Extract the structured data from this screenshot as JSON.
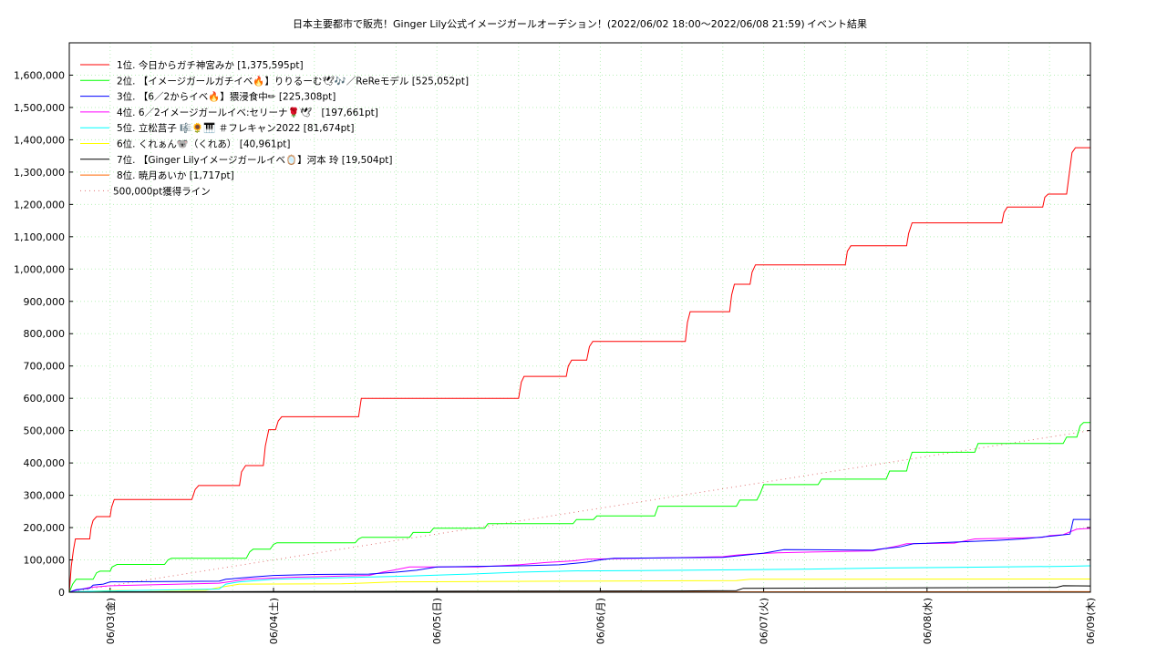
{
  "chart_data": {
    "type": "line",
    "title": "日本主要都市で販売！Ginger Lily公式イメージガールオーデション！(2022/06/02 18:00〜2022/06/08 21:59)",
    "subtitle": "イベント結果",
    "xlabel": "",
    "ylabel": "",
    "x_unit": "hours since 2022/06/02 18:00",
    "xlim": [
      0,
      150
    ],
    "ylim": [
      0,
      1700000
    ],
    "y_ticks": [
      0,
      100000,
      200000,
      300000,
      400000,
      500000,
      600000,
      700000,
      800000,
      900000,
      1000000,
      1100000,
      1200000,
      1300000,
      1400000,
      1500000,
      1600000
    ],
    "y_tick_labels": [
      "0",
      "100,000",
      "200,000",
      "300,000",
      "400,000",
      "500,000",
      "600,000",
      "700,000",
      "800,000",
      "900,000",
      "1,000,000",
      "1,100,000",
      "1,200,000",
      "1,300,000",
      "1,400,000",
      "1,500,000",
      "1,600,000"
    ],
    "x_ticks": [
      6,
      30,
      54,
      78,
      102,
      126,
      150
    ],
    "x_tick_labels": [
      "06/03(金)",
      "06/04(土)",
      "06/05(日)",
      "06/06(月)",
      "06/07(火)",
      "06/08(水)",
      "06/09(木)"
    ],
    "grid": true,
    "legend_position": "top-left",
    "series": [
      {
        "name": "1位. 今日からガチ神宮みか [1,375,595pt]",
        "color": "#ff0000",
        "style": "solid",
        "points": [
          [
            0,
            0
          ],
          [
            0.3,
            80000
          ],
          [
            0.6,
            130000
          ],
          [
            0.9,
            165000
          ],
          [
            3,
            165000
          ],
          [
            3.2,
            200000
          ],
          [
            3.5,
            222000
          ],
          [
            4,
            234000
          ],
          [
            6,
            234000
          ],
          [
            6.2,
            262000
          ],
          [
            6.6,
            287000
          ],
          [
            18,
            287000
          ],
          [
            18.5,
            318000
          ],
          [
            19,
            330000
          ],
          [
            25,
            330000
          ],
          [
            25.3,
            372000
          ],
          [
            25.9,
            392000
          ],
          [
            28.5,
            392000
          ],
          [
            28.8,
            452000
          ],
          [
            29.3,
            503000
          ],
          [
            30.3,
            503000
          ],
          [
            30.7,
            530000
          ],
          [
            31.2,
            543000
          ],
          [
            42.5,
            543000
          ],
          [
            42.9,
            600000
          ],
          [
            66,
            600000
          ],
          [
            66.4,
            650000
          ],
          [
            66.8,
            668000
          ],
          [
            73,
            668000
          ],
          [
            73.3,
            700000
          ],
          [
            73.8,
            718000
          ],
          [
            76,
            718000
          ],
          [
            76.4,
            760000
          ],
          [
            76.9,
            776000
          ],
          [
            90.5,
            776000
          ],
          [
            90.8,
            835000
          ],
          [
            91.2,
            868000
          ],
          [
            97,
            868000
          ],
          [
            97.3,
            920000
          ],
          [
            97.7,
            953000
          ],
          [
            100,
            953000
          ],
          [
            100.3,
            990000
          ],
          [
            100.8,
            1013000
          ],
          [
            114,
            1013000
          ],
          [
            114.3,
            1055000
          ],
          [
            114.8,
            1072000
          ],
          [
            123,
            1072000
          ],
          [
            123.3,
            1110000
          ],
          [
            123.8,
            1143000
          ],
          [
            137,
            1143000
          ],
          [
            137.3,
            1175000
          ],
          [
            137.8,
            1192000
          ],
          [
            143,
            1192000
          ],
          [
            143.3,
            1222000
          ],
          [
            143.8,
            1232000
          ],
          [
            146.5,
            1232000
          ],
          [
            146.8,
            1280000
          ],
          [
            147.3,
            1360000
          ],
          [
            147.8,
            1375595
          ],
          [
            150,
            1375595
          ]
        ]
      },
      {
        "name": "2位. 【イメージガールガチイベ🔥】りりるーむ🕊🎶／ReReモデル [525,052pt]",
        "color": "#00ff00",
        "style": "solid",
        "points": [
          [
            0,
            0
          ],
          [
            0.5,
            25000
          ],
          [
            1,
            40000
          ],
          [
            3.5,
            40000
          ],
          [
            4,
            60000
          ],
          [
            4.5,
            65000
          ],
          [
            6,
            65000
          ],
          [
            6.3,
            78000
          ],
          [
            7,
            86000
          ],
          [
            14,
            86000
          ],
          [
            14.5,
            100000
          ],
          [
            15,
            105000
          ],
          [
            26,
            105000
          ],
          [
            26.5,
            125000
          ],
          [
            27,
            133000
          ],
          [
            29.5,
            133000
          ],
          [
            30,
            148000
          ],
          [
            30.5,
            153000
          ],
          [
            42,
            153000
          ],
          [
            42.5,
            165000
          ],
          [
            43,
            170000
          ],
          [
            50,
            170000
          ],
          [
            50.5,
            185000
          ],
          [
            53,
            185000
          ],
          [
            53.5,
            198000
          ],
          [
            61,
            198000
          ],
          [
            61.5,
            212000
          ],
          [
            74,
            212000
          ],
          [
            74.5,
            225000
          ],
          [
            77,
            225000
          ],
          [
            77.5,
            236000
          ],
          [
            86,
            236000
          ],
          [
            86.5,
            266000
          ],
          [
            98,
            266000
          ],
          [
            98.5,
            285000
          ],
          [
            101,
            285000
          ],
          [
            101.5,
            306000
          ],
          [
            102,
            333000
          ],
          [
            110,
            333000
          ],
          [
            110.5,
            350000
          ],
          [
            120,
            350000
          ],
          [
            120.5,
            375000
          ],
          [
            123,
            375000
          ],
          [
            123.3,
            400000
          ],
          [
            123.8,
            433000
          ],
          [
            133,
            433000
          ],
          [
            133.5,
            460000
          ],
          [
            146,
            460000
          ],
          [
            146.5,
            480000
          ],
          [
            148,
            480000
          ],
          [
            148.5,
            515000
          ],
          [
            149,
            525052
          ],
          [
            150,
            525052
          ]
        ]
      },
      {
        "name": "3位. 【6／2からイベ🔥】猥浸食中✏ [225,308pt]",
        "color": "#0000ff",
        "style": "solid",
        "points": [
          [
            0,
            0
          ],
          [
            1,
            8000
          ],
          [
            3,
            12000
          ],
          [
            3.5,
            22000
          ],
          [
            5,
            25000
          ],
          [
            6,
            32000
          ],
          [
            22,
            34000
          ],
          [
            23,
            40000
          ],
          [
            27,
            47000
          ],
          [
            30,
            52000
          ],
          [
            36,
            55000
          ],
          [
            44,
            56000
          ],
          [
            48,
            62000
          ],
          [
            51,
            68000
          ],
          [
            54,
            78000
          ],
          [
            60,
            80000
          ],
          [
            67,
            82000
          ],
          [
            72,
            85000
          ],
          [
            76,
            93000
          ],
          [
            78,
            100000
          ],
          [
            80,
            105000
          ],
          [
            96,
            108000
          ],
          [
            102,
            121000
          ],
          [
            105,
            132000
          ],
          [
            118,
            130000
          ],
          [
            119,
            133000
          ],
          [
            122,
            140000
          ],
          [
            124,
            150000
          ],
          [
            130,
            155000
          ],
          [
            136,
            160000
          ],
          [
            140,
            165000
          ],
          [
            145,
            175000
          ],
          [
            147,
            180000
          ],
          [
            147.5,
            225308
          ],
          [
            150,
            225308
          ]
        ]
      },
      {
        "name": "4位. 6／2イメージガールイベ:セリーナ🌹🕊　[197,661pt]",
        "color": "#ff00ff",
        "style": "solid",
        "points": [
          [
            0,
            0
          ],
          [
            1,
            6000
          ],
          [
            3,
            15000
          ],
          [
            6,
            20000
          ],
          [
            22,
            28000
          ],
          [
            26,
            40000
          ],
          [
            32,
            46000
          ],
          [
            44,
            52000
          ],
          [
            46,
            62000
          ],
          [
            48,
            70000
          ],
          [
            50,
            78000
          ],
          [
            60,
            78000
          ],
          [
            66,
            85000
          ],
          [
            70,
            92000
          ],
          [
            74,
            97000
          ],
          [
            76,
            102000
          ],
          [
            84,
            105000
          ],
          [
            96,
            110000
          ],
          [
            98,
            115000
          ],
          [
            100,
            118000
          ],
          [
            104,
            122000
          ],
          [
            110,
            125000
          ],
          [
            118,
            128000
          ],
          [
            121,
            140000
          ],
          [
            123,
            150000
          ],
          [
            130,
            152000
          ],
          [
            133,
            165000
          ],
          [
            140,
            168000
          ],
          [
            143,
            170000
          ],
          [
            144,
            175000
          ],
          [
            146,
            178000
          ],
          [
            148,
            195000
          ],
          [
            150,
            197661
          ]
        ]
      },
      {
        "name": "5位. 立松莒子 🎼🌻🎹 ＃フレキャン2022 [81,674pt]",
        "color": "#00ffff",
        "style": "solid",
        "points": [
          [
            0,
            0
          ],
          [
            1,
            2000
          ],
          [
            6,
            4000
          ],
          [
            22,
            10000
          ],
          [
            23,
            25000
          ],
          [
            25,
            32000
          ],
          [
            30,
            40000
          ],
          [
            40,
            45000
          ],
          [
            50,
            50000
          ],
          [
            60,
            57000
          ],
          [
            66,
            62000
          ],
          [
            74,
            66000
          ],
          [
            84,
            67000
          ],
          [
            100,
            70000
          ],
          [
            110,
            72000
          ],
          [
            120,
            75000
          ],
          [
            130,
            77000
          ],
          [
            146,
            80000
          ],
          [
            150,
            81674
          ]
        ]
      },
      {
        "name": "6位. くれぁん🐨（くれあ） [40,961pt]",
        "color": "#ffff00",
        "style": "solid",
        "points": [
          [
            0,
            0
          ],
          [
            6,
            5000
          ],
          [
            20,
            6000
          ],
          [
            22,
            15000
          ],
          [
            25,
            25000
          ],
          [
            40,
            26000
          ],
          [
            48,
            32000
          ],
          [
            60,
            33000
          ],
          [
            72,
            34000
          ],
          [
            84,
            35000
          ],
          [
            98,
            36000
          ],
          [
            100,
            40000
          ],
          [
            150,
            40961
          ]
        ]
      },
      {
        "name": "7位. 【Ginger Lilyイメージガールイベ🪞】河本 玲 [19,504pt]",
        "color": "#000000",
        "style": "solid",
        "points": [
          [
            0,
            0
          ],
          [
            5,
            1000
          ],
          [
            30,
            2000
          ],
          [
            60,
            3000
          ],
          [
            90,
            4000
          ],
          [
            98,
            5000
          ],
          [
            99,
            12000
          ],
          [
            115,
            13000
          ],
          [
            145,
            15000
          ],
          [
            146,
            20000
          ],
          [
            150,
            19504
          ]
        ]
      },
      {
        "name": "8位. 暁月あいか [1,717pt]",
        "color": "#ff6600",
        "style": "solid",
        "points": [
          [
            0,
            0
          ],
          [
            40,
            800
          ],
          [
            80,
            1200
          ],
          [
            150,
            1717
          ]
        ]
      },
      {
        "name": "500,000pt獲得ライン",
        "color": "#ff0000",
        "style": "dotted",
        "points": [
          [
            0,
            0
          ],
          [
            150,
            500000
          ]
        ]
      }
    ]
  }
}
